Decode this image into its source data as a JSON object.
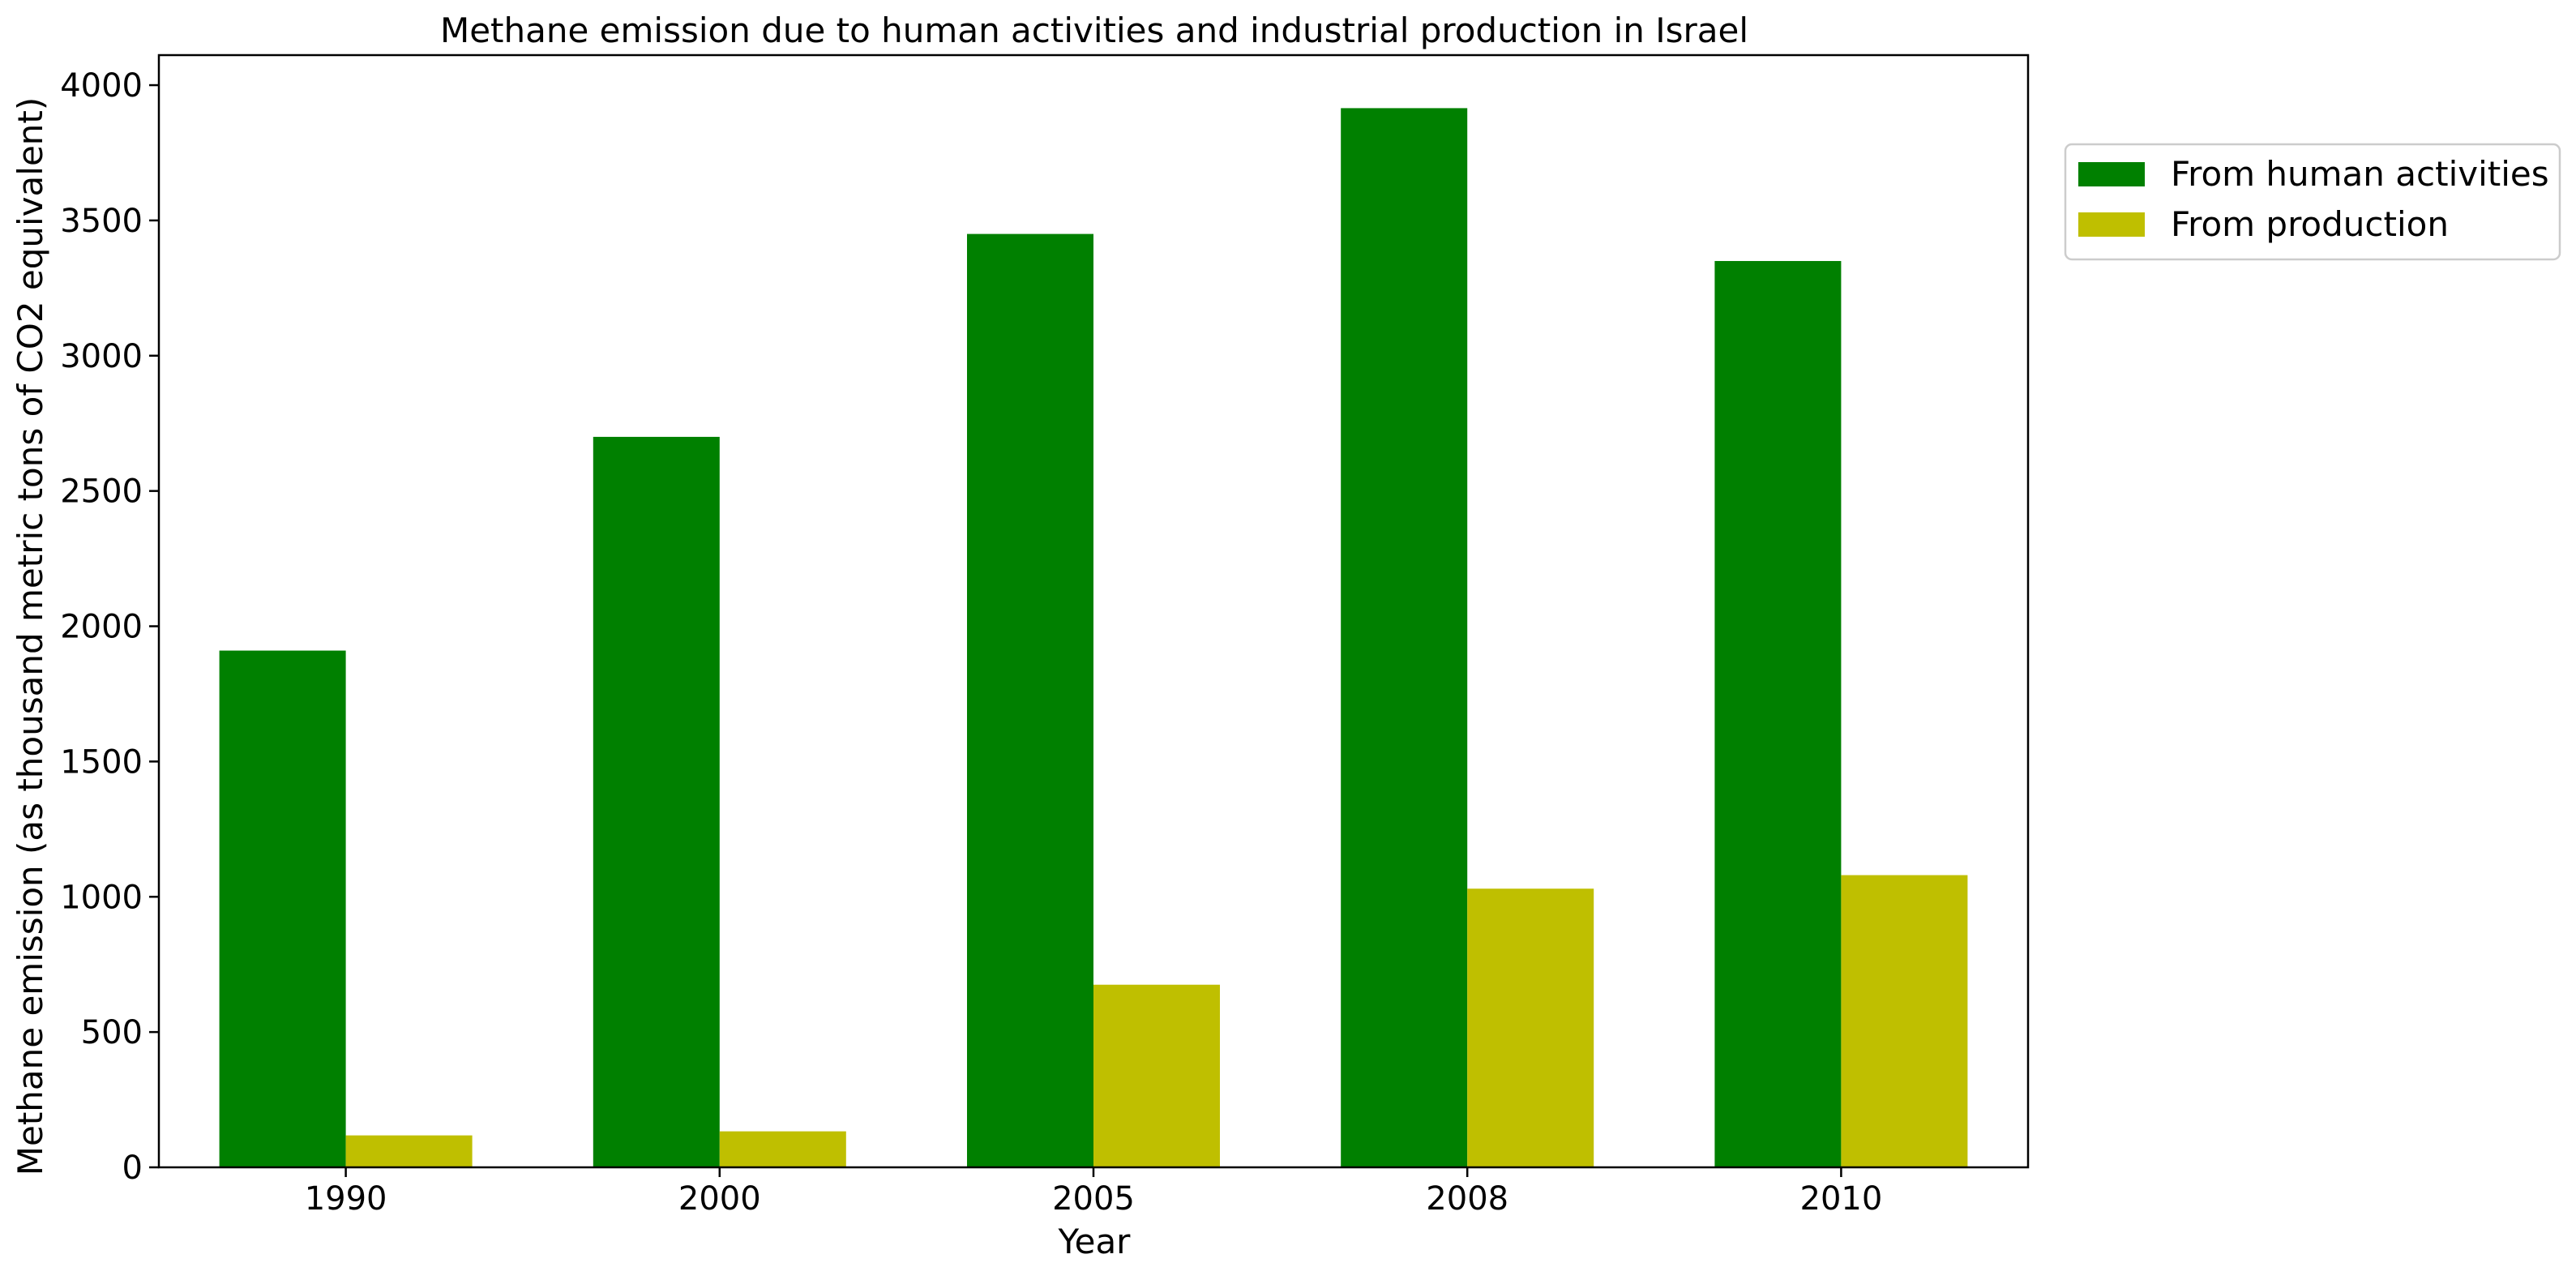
{
  "chart_data": {
    "type": "bar",
    "title": "Methane emission due to human activities and industrial production in Israel",
    "xlabel": "Year",
    "ylabel": "Methane emission (as thousand metric tons of CO2 equivalent)",
    "categories": [
      "1990",
      "2000",
      "2005",
      "2008",
      "2010"
    ],
    "series": [
      {
        "name": "From human activities",
        "color": "#008000",
        "values": [
          1910,
          2700,
          3450,
          3915,
          3350
        ]
      },
      {
        "name": "From production",
        "color": "#bfbf00",
        "values": [
          118,
          133,
          675,
          1030,
          1080
        ]
      }
    ],
    "ylim": [
      0,
      4111
    ],
    "yticks": [
      0,
      500,
      1000,
      1500,
      2000,
      2500,
      3000,
      3500,
      4000
    ],
    "grid": false,
    "legend_position": "outside-top-right"
  }
}
